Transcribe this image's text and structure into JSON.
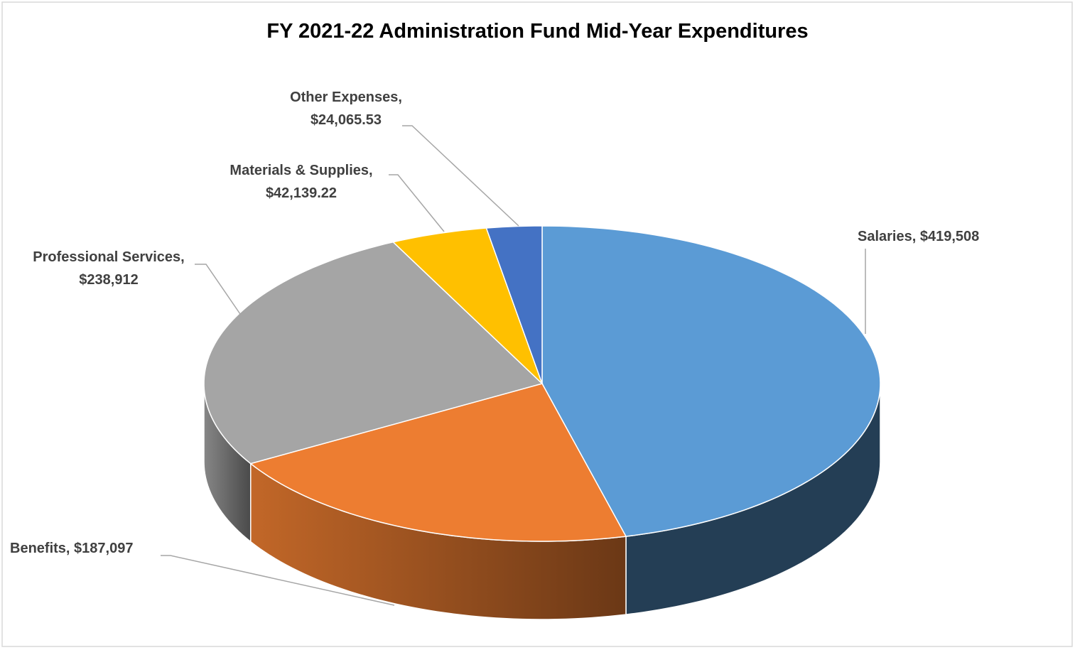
{
  "chart_data": {
    "type": "pie",
    "title": "FY 2021-22 Administration Fund Mid-Year Expenditures",
    "values": [
      419508,
      187097,
      238912,
      42139.22,
      24065.53
    ],
    "value_labels": [
      "Salaries, $419,508",
      "Benefits, $187,097",
      "Professional Services, $238,912",
      "Materials & Supplies, $42,139.22",
      "Other Expenses, $24,065.53"
    ],
    "colors": [
      "#5b9bd5",
      "#ed7d31",
      "#a5a5a5",
      "#ffc000",
      "#4472c4"
    ]
  }
}
